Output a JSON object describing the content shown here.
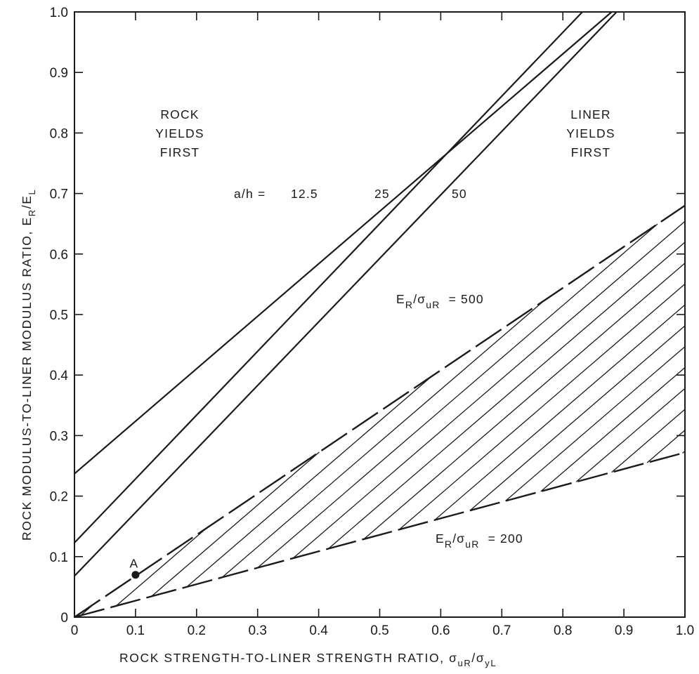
{
  "chart_data": {
    "type": "line",
    "xlabel": "ROCK STRENGTH-TO-LINER STRENGTH RATIO, σuR/σyL",
    "xlabel_main": "ROCK STRENGTH-TO-LINER STRENGTH RATIO, σ",
    "xlabel_sub1": "uR",
    "xlabel_mid": "/σ",
    "xlabel_sub2": "yL",
    "ylabel": "ROCK MODULUS-TO-LINER MODULUS RATIO, ER/EL",
    "ylabel_main": "ROCK MODULUS-TO-LINER MODULUS RATIO, E",
    "ylabel_sub1": "R",
    "ylabel_mid": "/E",
    "ylabel_sub2": "L",
    "xlim": [
      0,
      1.0
    ],
    "ylim": [
      0,
      1.0
    ],
    "grid": false,
    "x_ticks": [
      0,
      0.1,
      0.2,
      0.3,
      0.4,
      0.5,
      0.6,
      0.7,
      0.8,
      0.9,
      1.0
    ],
    "x_tick_labels": [
      "0",
      "0.1",
      "0.2",
      "0.3",
      "0.4",
      "0.5",
      "0.6",
      "0.7",
      "0.8",
      "0.9",
      "1.0"
    ],
    "y_ticks": [
      0,
      0.1,
      0.2,
      0.3,
      0.4,
      0.5,
      0.6,
      0.7,
      0.8,
      0.9,
      1.0
    ],
    "y_tick_labels": [
      "0",
      "0.1",
      "0.2",
      "0.3",
      "0.4",
      "0.5",
      "0.6",
      "0.7",
      "0.8",
      "0.9",
      "1.0"
    ],
    "series": [
      {
        "name": "a/h = 12.5",
        "style": "solid",
        "x": [
          0,
          0.88
        ],
        "y": [
          0.237,
          1.0
        ]
      },
      {
        "name": "25",
        "style": "solid",
        "x": [
          0,
          0.832
        ],
        "y": [
          0.123,
          1.0
        ]
      },
      {
        "name": "50",
        "style": "solid",
        "x": [
          0,
          0.888
        ],
        "y": [
          0.068,
          1.0
        ]
      },
      {
        "name": "ER/σuR = 500",
        "style": "dashed",
        "x": [
          0,
          0.2,
          0.5,
          0.75,
          1.0
        ],
        "y": [
          0,
          0.136,
          0.34,
          0.51,
          0.68
        ]
      },
      {
        "name": "ER/σuR = 200",
        "style": "dashed",
        "x": [
          0,
          0.25,
          0.5,
          0.75,
          1.0
        ],
        "y": [
          0,
          0.068,
          0.136,
          0.204,
          0.272
        ]
      }
    ],
    "shaded_region": {
      "between": [
        "ER/σuR = 500",
        "ER/σuR = 200"
      ],
      "pattern": "diagonal-hatch"
    },
    "points": [
      {
        "label": "A",
        "x": 0.1,
        "y": 0.07
      }
    ],
    "annotations": {
      "rock_yields": [
        "ROCK",
        "YIELDS",
        "FIRST"
      ],
      "liner_yields": [
        "LINER",
        "YIELDS",
        "FIRST"
      ],
      "ah_prefix": "a/h  =",
      "ah_values": [
        "12.5",
        "25",
        "50"
      ],
      "er500": {
        "e": "E",
        "sub_r": "R",
        "slash": "/σ",
        "sub_ur": "uR",
        "value": "=  500"
      },
      "er200": {
        "e": "E",
        "sub_r": "R",
        "slash": "/σ",
        "sub_ur": "uR",
        "value": "=  200"
      }
    }
  }
}
